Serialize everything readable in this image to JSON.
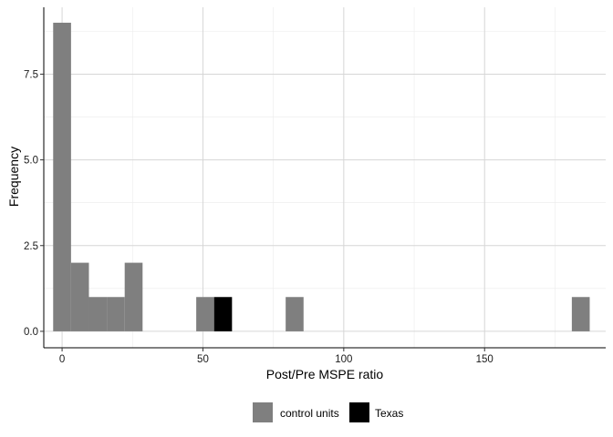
{
  "chart_data": {
    "type": "bar",
    "subtype": "histogram",
    "xlabel": "Post/Pre MSPE ratio",
    "ylabel": "Frequency",
    "xlim": [
      -6.5,
      193
    ],
    "ylim": [
      -0.48,
      9.45
    ],
    "x_ticks": [
      0,
      50,
      100,
      150
    ],
    "x_tick_labels": [
      "0",
      "50",
      "100",
      "150"
    ],
    "y_ticks": [
      0,
      2.5,
      5,
      7.5
    ],
    "y_tick_labels": [
      "0.0",
      "2.5",
      "5.0",
      "7.5"
    ],
    "bin_width": 6.35,
    "grid": true,
    "legend_position": "bottom",
    "series": [
      {
        "name": "control units",
        "color": "#7f7f7f",
        "bins": [
          {
            "x": 0,
            "count": 9
          },
          {
            "x": 6.35,
            "count": 2
          },
          {
            "x": 12.7,
            "count": 1
          },
          {
            "x": 19.05,
            "count": 1
          },
          {
            "x": 25.4,
            "count": 2
          },
          {
            "x": 50.8,
            "count": 1
          },
          {
            "x": 82.55,
            "count": 1
          },
          {
            "x": 184.15,
            "count": 1
          }
        ]
      },
      {
        "name": "Texas",
        "color": "#000000",
        "bins": [
          {
            "x": 57.15,
            "count": 1
          }
        ]
      }
    ]
  }
}
